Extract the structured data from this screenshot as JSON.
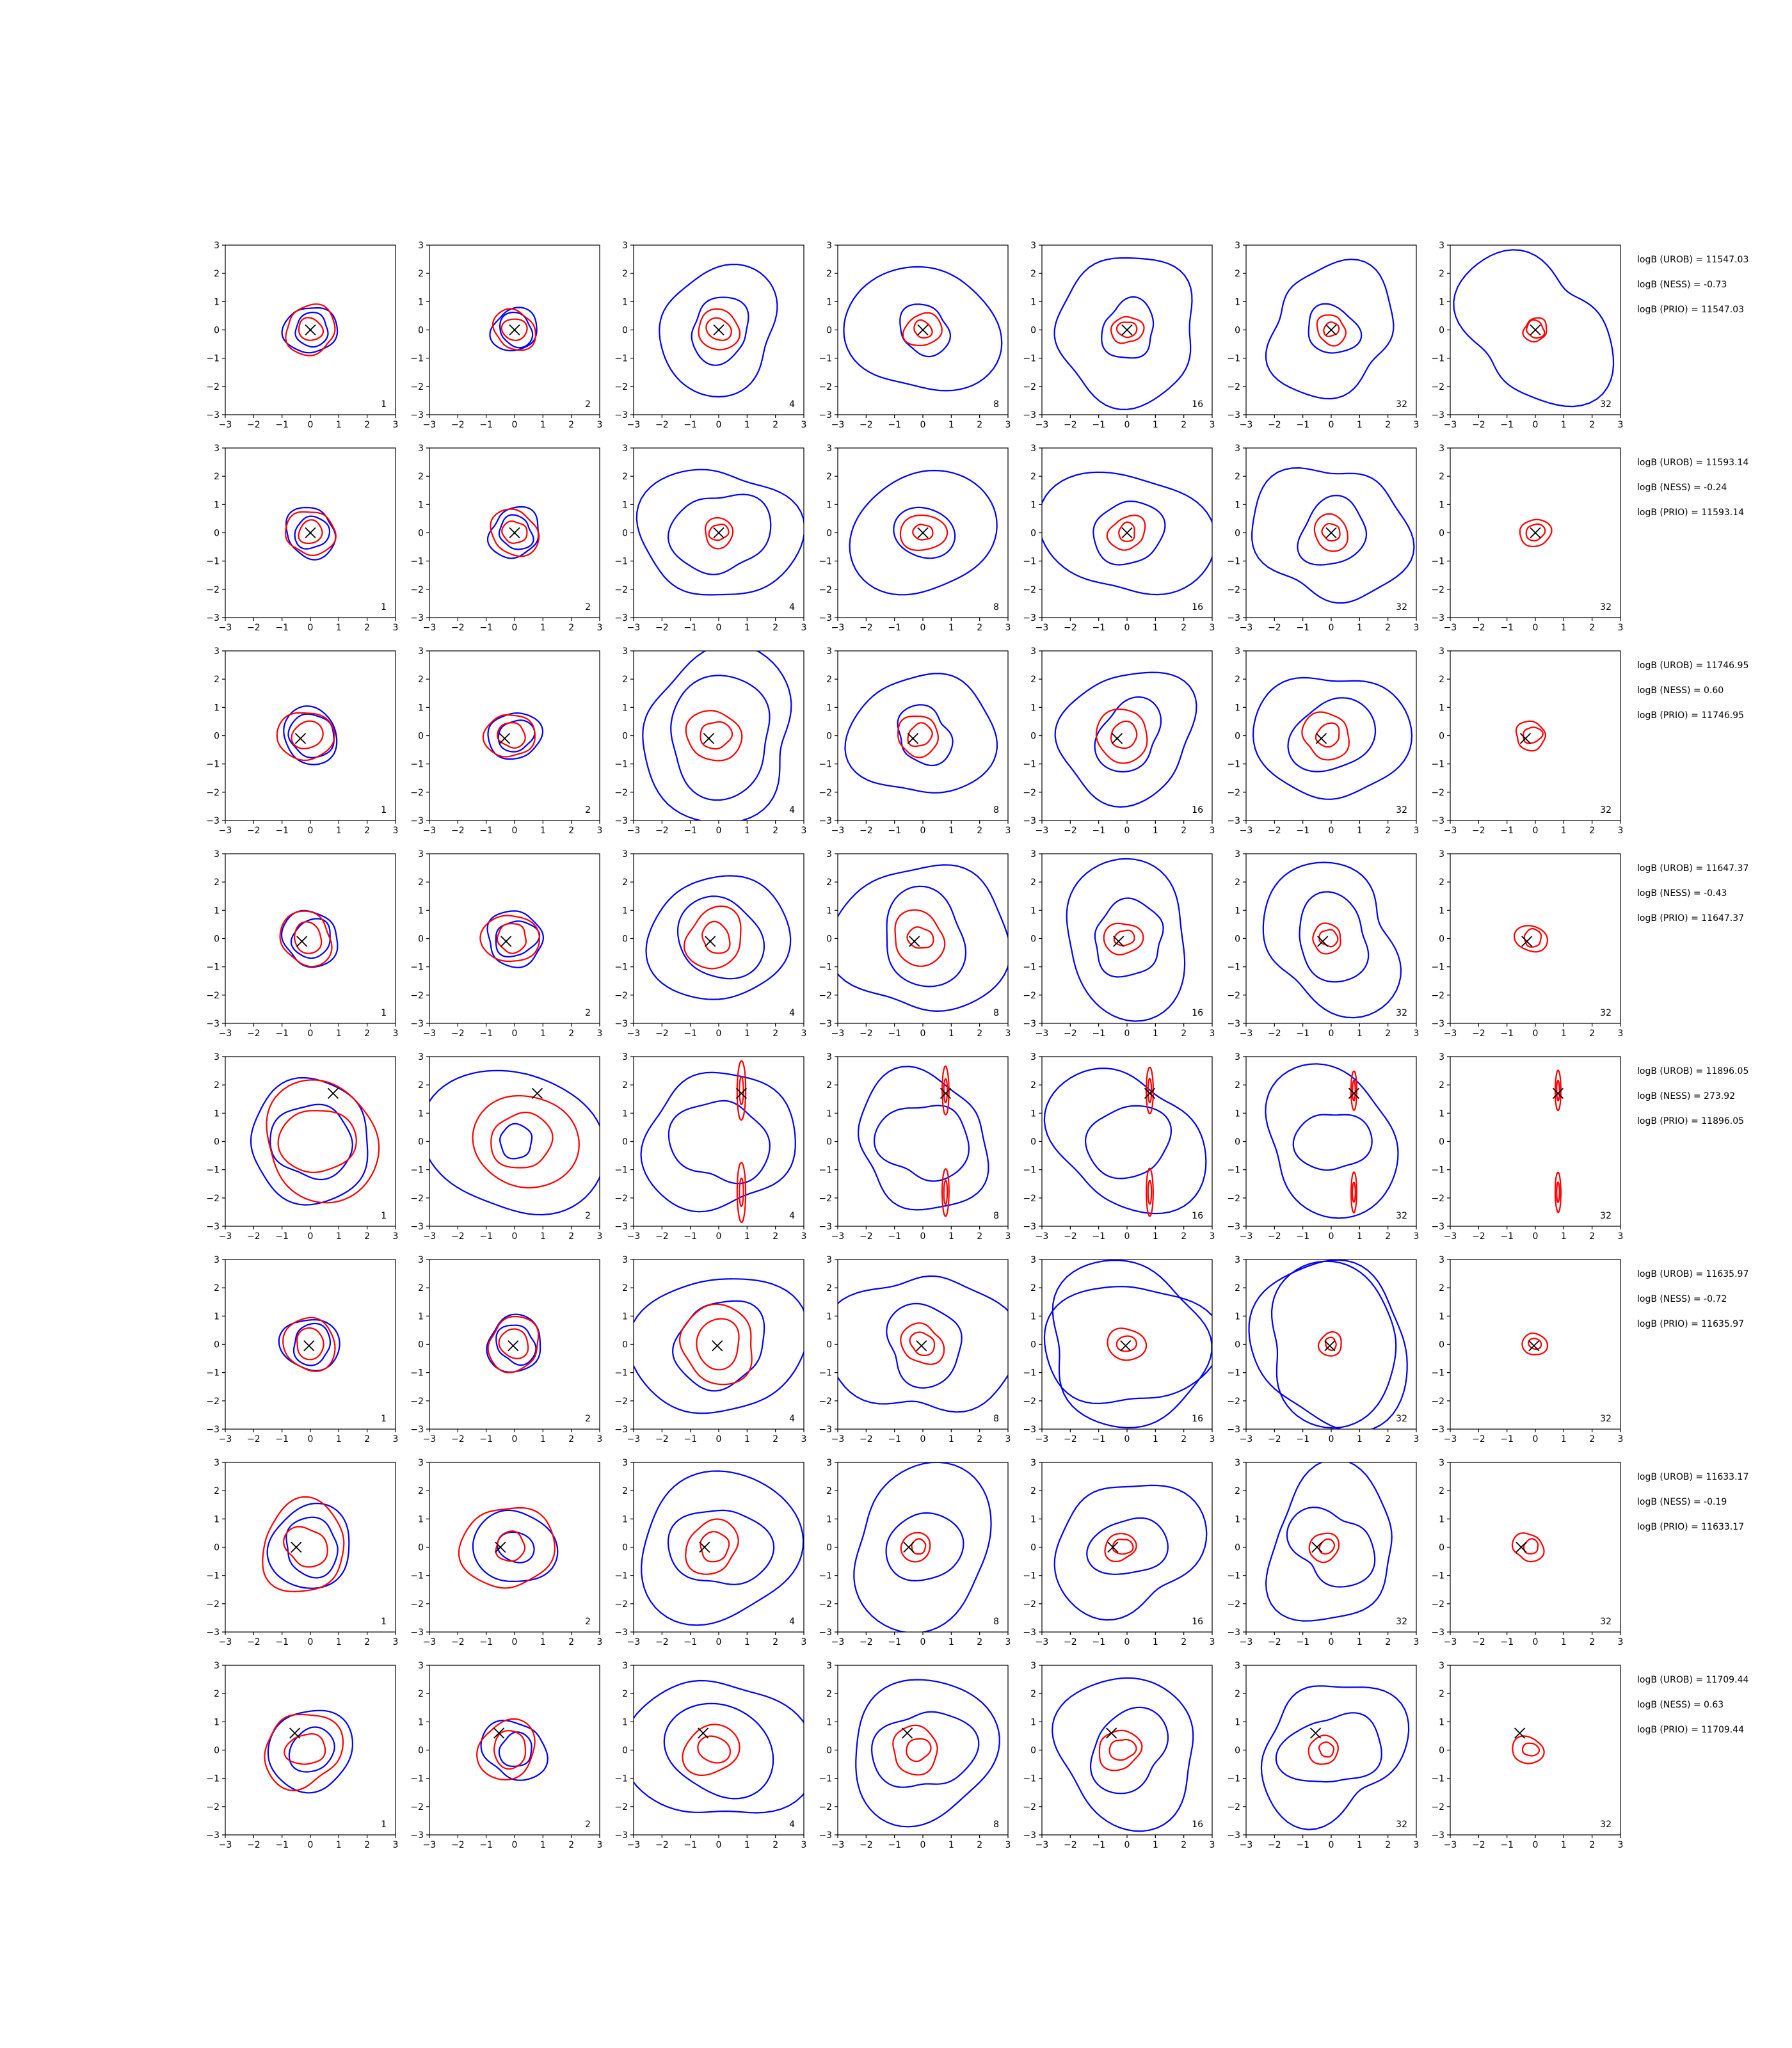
{
  "chart_data": {
    "type": "contour-grid",
    "rows": 8,
    "columns": 7,
    "axis": {
      "xlim": [
        -3,
        3
      ],
      "ylim": [
        -3,
        3
      ],
      "ticks": [
        "−3",
        "−2",
        "−1",
        "0",
        "1",
        "2",
        "3"
      ]
    },
    "column_labels": [
      "1",
      "2",
      "4",
      "8",
      "16",
      "32",
      "32"
    ],
    "colors": {
      "blue_contour": "#0000ff",
      "red_contour": "#ff0000",
      "marker": "#000000"
    },
    "rows_data": [
      {
        "stats": [
          "logB (UROB) = 11547.03",
          "logB (NESS) = -0.73",
          "logB (PRIO) = 11547.03"
        ],
        "marker": [
          0.0,
          0.0
        ],
        "blue": [
          [
            0.9,
            0.8,
            2.2,
            2.5,
            2.6,
            2.3,
            2.6
          ],
          [
            0.6,
            0.6,
            1.1,
            0.9,
            1.0,
            0.9,
            0
          ]
        ],
        "red": [
          [
            0.85,
            0.7,
            0.7,
            0.6,
            0.5,
            0.5,
            0.4
          ],
          [
            0.4,
            0.4,
            0.4,
            0.3,
            0.3,
            0.25,
            0.3
          ]
        ]
      },
      {
        "stats": [
          "logB (UROB) = 11593.14",
          "logB (NESS) = -0.24",
          "logB (PRIO) = 11593.14"
        ],
        "marker": [
          0.0,
          0.0
        ],
        "blue": [
          [
            0.9,
            0.9,
            2.6,
            2.4,
            2.6,
            2.6,
            0
          ],
          [
            0.6,
            0.6,
            1.6,
            1.0,
            1.2,
            1.2,
            0
          ]
        ],
        "red": [
          [
            0.8,
            0.8,
            0.5,
            0.7,
            0.6,
            0.6,
            0.5
          ],
          [
            0.4,
            0.4,
            0.3,
            0.3,
            0.3,
            0.3,
            0.3
          ]
        ]
      },
      {
        "stats": [
          "logB (UROB) = 11746.95",
          "logB (NESS) = 0.60",
          "logB (PRIO) = 11746.95"
        ],
        "marker": [
          -0.35,
          -0.1
        ],
        "blue": [
          [
            1.0,
            0.9,
            2.9,
            2.4,
            2.4,
            2.5,
            0
          ],
          [
            0.8,
            0.6,
            2.0,
            1.0,
            1.2,
            1.4,
            0
          ]
        ],
        "red": [
          [
            0.9,
            0.8,
            0.9,
            0.7,
            0.9,
            0.8,
            0.5
          ],
          [
            0.5,
            0.45,
            0.5,
            0.4,
            0.45,
            0.4,
            0.3
          ]
        ]
      },
      {
        "stats": [
          "logB (UROB) = 11647.37",
          "logB (NESS) = -0.43",
          "logB (PRIO) = 11647.37"
        ],
        "marker": [
          -0.3,
          -0.1
        ],
        "blue": [
          [
            1.0,
            1.0,
            2.4,
            2.9,
            2.5,
            2.5,
            0
          ],
          [
            0.7,
            0.7,
            1.5,
            1.6,
            1.3,
            1.4,
            0
          ]
        ],
        "red": [
          [
            0.9,
            0.9,
            1.0,
            0.9,
            0.6,
            0.5,
            0.5
          ],
          [
            0.5,
            0.5,
            0.5,
            0.4,
            0.3,
            0.3,
            0.3
          ]
        ]
      },
      {
        "stats": [
          "logB (UROB) = 11896.05",
          "logB (NESS) = 273.92",
          "logB (PRIO) = 11896.05"
        ],
        "marker": [
          0.8,
          1.7
        ],
        "blue": [
          [
            2.2,
            2.9,
            2.6,
            2.4,
            2.6,
            2.5,
            0
          ],
          [
            1.4,
            0.6,
            1.6,
            1.5,
            1.4,
            1.2,
            0
          ]
        ],
        "red": [
          [
            2.0,
            1.7,
            0.15,
            0.12,
            0.12,
            0.1,
            0.1
          ],
          [
            1.2,
            1.0,
            0.07,
            0.06,
            0.06,
            0.05,
            0.05
          ]
        ]
      },
      {
        "stats": [
          "logB (UROB) = 11635.97",
          "logB (NESS) = -0.72",
          "logB (PRIO) = 11635.97"
        ],
        "marker": [
          -0.05,
          -0.05
        ],
        "blue": [
          [
            1.0,
            1.0,
            2.8,
            2.9,
            2.9,
            2.9,
            0
          ],
          [
            0.7,
            0.7,
            1.6,
            1.4,
            2.6,
            2.6,
            0
          ]
        ],
        "red": [
          [
            0.9,
            0.9,
            1.3,
            0.7,
            0.6,
            0.4,
            0.4
          ],
          [
            0.5,
            0.5,
            0.8,
            0.4,
            0.3,
            0.2,
            0.2
          ]
        ]
      },
      {
        "stats": [
          "logB (UROB) = 11633.17",
          "logB (NESS) = -0.19",
          "logB (PRIO) = 11633.17"
        ],
        "marker": [
          -0.5,
          0.0
        ],
        "blue": [
          [
            1.5,
            1.4,
            2.8,
            2.7,
            2.5,
            2.5,
            0
          ],
          [
            1.0,
            0.6,
            1.6,
            1.3,
            1.2,
            1.4,
            0
          ]
        ],
        "red": [
          [
            1.5,
            1.5,
            0.9,
            0.5,
            0.5,
            0.5,
            0.5
          ],
          [
            0.7,
            0.5,
            0.5,
            0.25,
            0.3,
            0.25,
            0.25
          ]
        ]
      },
      {
        "stats": [
          "logB (UROB) = 11709.44",
          "logB (NESS) = 0.63",
          "logB (PRIO) = 11709.44"
        ],
        "marker": [
          -0.55,
          0.6
        ],
        "blue": [
          [
            1.5,
            1.1,
            2.9,
            2.6,
            2.6,
            2.5,
            0
          ],
          [
            0.8,
            0.6,
            1.8,
            1.6,
            1.4,
            1.5,
            0
          ]
        ],
        "red": [
          [
            1.3,
            1.0,
            0.9,
            0.8,
            0.7,
            0.5,
            0.5
          ],
          [
            0.6,
            0.6,
            0.5,
            0.4,
            0.4,
            0.25,
            0.25
          ]
        ]
      }
    ]
  }
}
